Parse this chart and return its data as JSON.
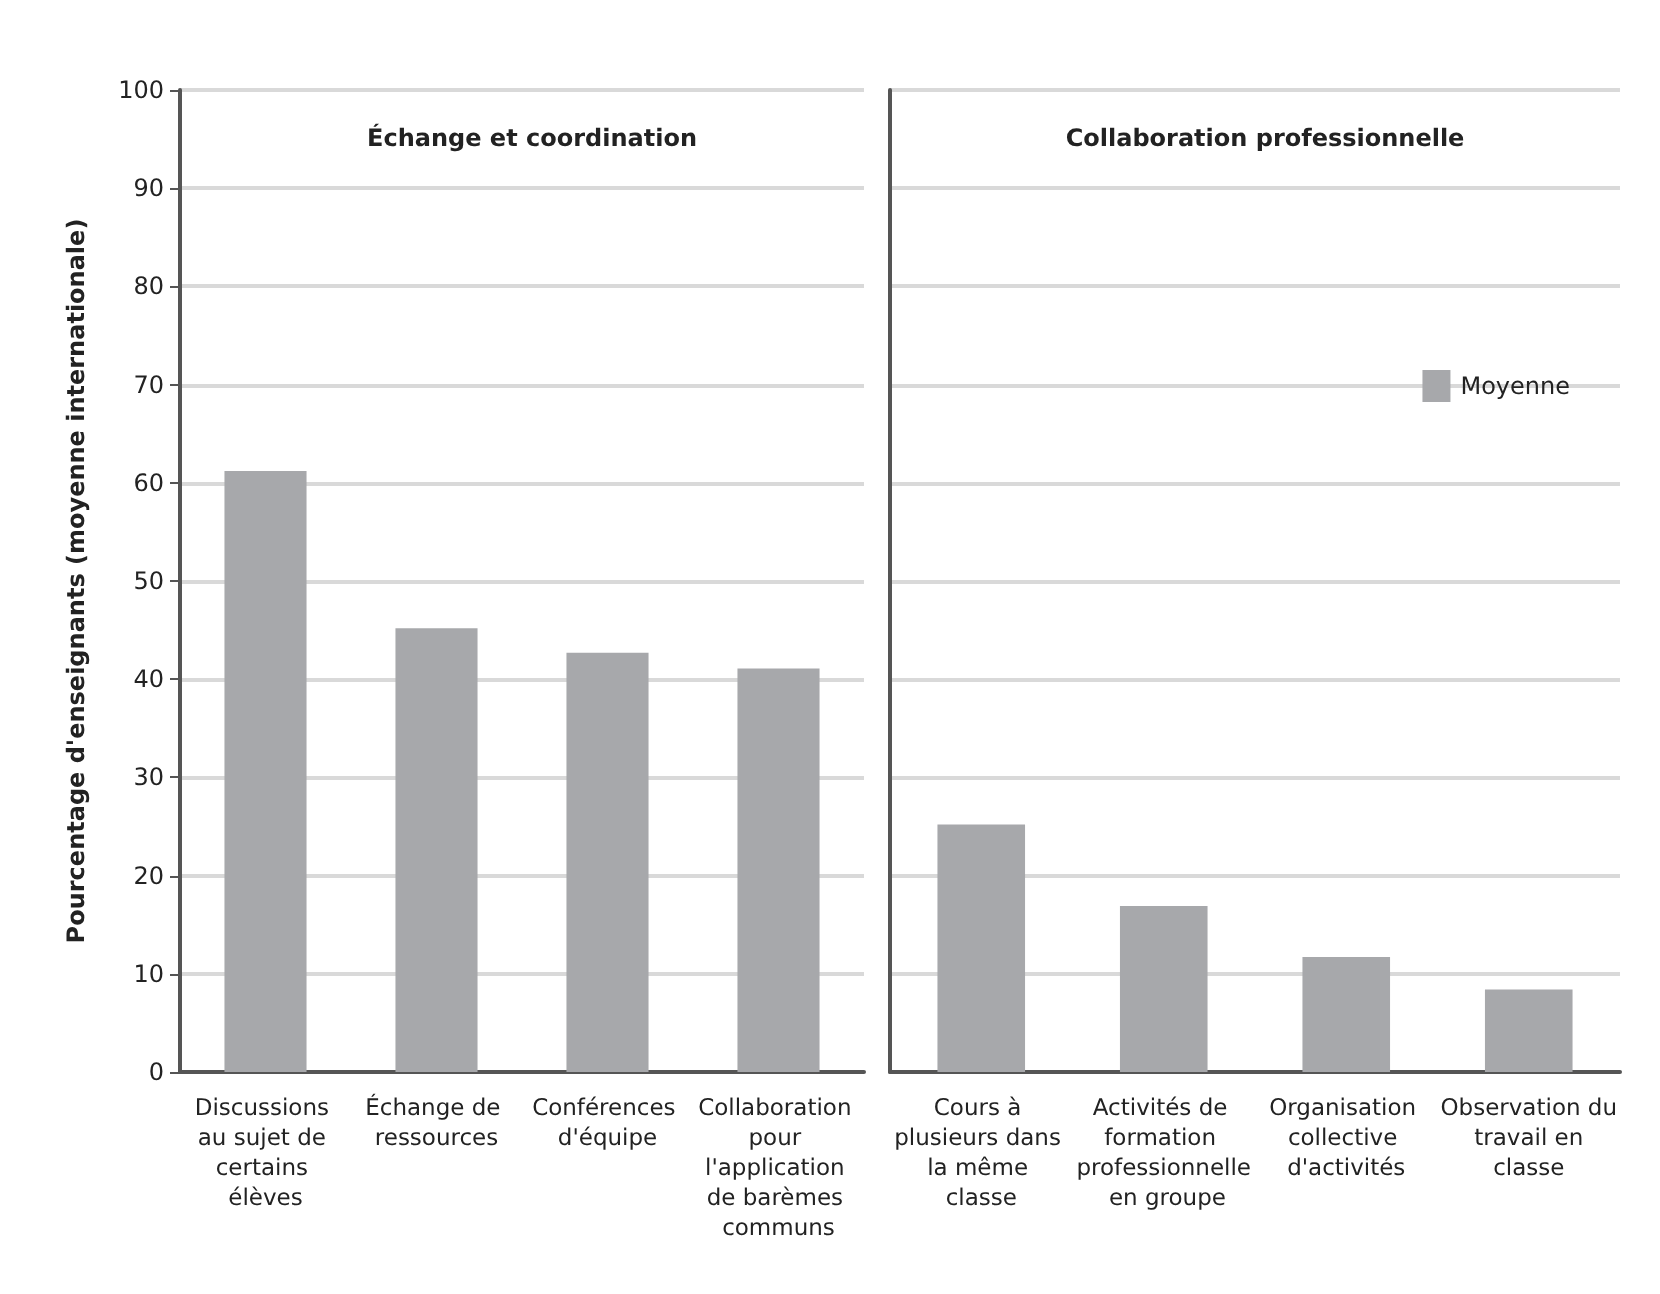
{
  "chart_data": [
    {
      "type": "bar",
      "title": "Échange et coordination",
      "ylabel": "Pourcentage d'enseignants (moyenne internationale)",
      "categories": [
        "Discussions au sujet de certains élèves",
        "Échange de ressources",
        "Conférences d'équipe",
        "Collaboration pour l'application de barèmes communs"
      ],
      "series": [
        {
          "color": "#a7a8ab",
          "values": [
            61.2,
            45.2,
            42.7,
            41.1
          ]
        }
      ],
      "ylim": [
        0,
        100
      ],
      "yticks": [
        0,
        10,
        20,
        30,
        40,
        50,
        60,
        70,
        80,
        90,
        100
      ],
      "grid": "y",
      "legend": false
    },
    {
      "type": "bar",
      "title": "Collaboration professionnelle",
      "categories": [
        "Cours à plusieurs dans la même classe",
        "Activités de formation professionnelle en groupe",
        "Organisation collective d'activités",
        "Observation du travail en classe"
      ],
      "series": [
        {
          "name": "Moyenne",
          "color": "#a7a8ab",
          "values": [
            25.2,
            16.9,
            11.7,
            8.4
          ]
        }
      ],
      "ylim": [
        0,
        100
      ],
      "yticks": [
        0,
        10,
        20,
        30,
        40,
        50,
        60,
        70,
        80,
        90,
        100
      ],
      "grid": "y",
      "legend": "right",
      "tick_labels": "x"
    }
  ]
}
